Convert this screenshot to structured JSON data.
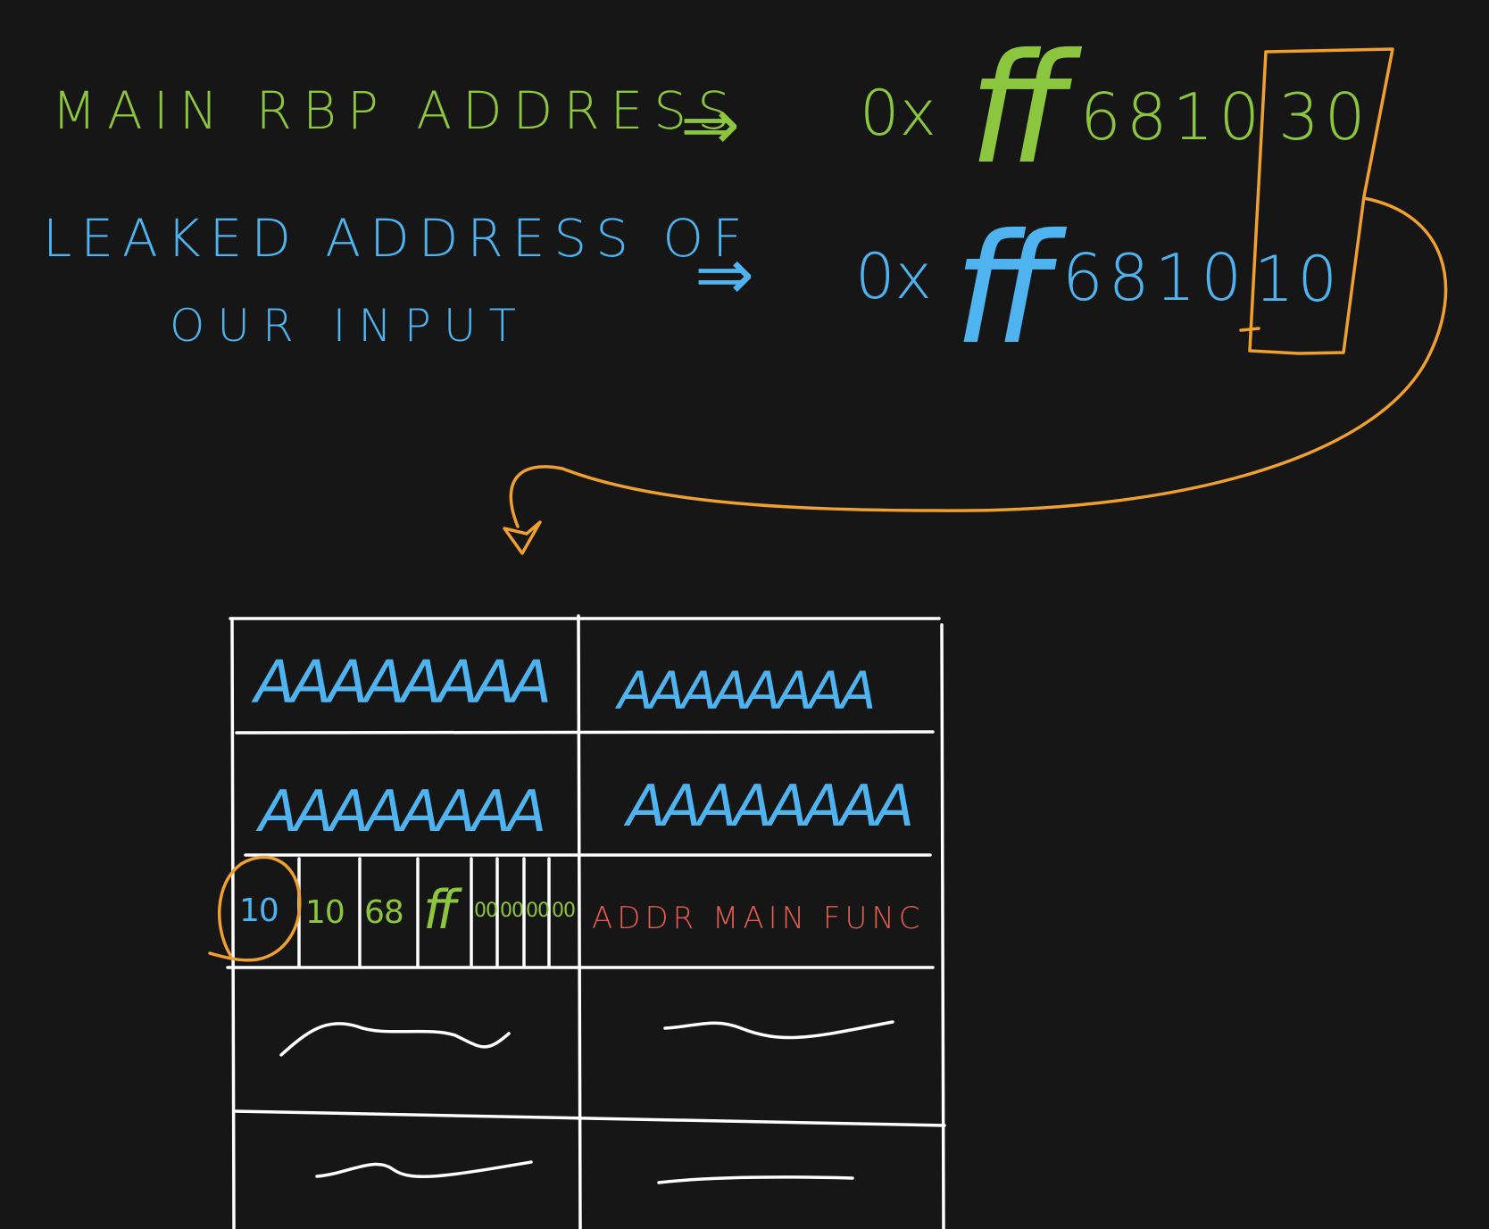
{
  "colors": {
    "background": "#161616",
    "rbp_green": "#8cc63f",
    "input_blue": "#4fb3ef",
    "highlight_orange": "#f0a030",
    "main_addr_red": "#e85d4f",
    "lines_white": "#ffffff"
  },
  "header": {
    "main_rbp_label": "MAIN RBP ADDRESS",
    "main_rbp_arrow": "⇒",
    "main_rbp_prefix": "0x",
    "main_rbp_ff": "ff",
    "main_rbp_middle": "6810",
    "main_rbp_last": "30",
    "leaked_label_line1": "LEAKED ADDRESS OF",
    "leaked_label_line2": "OUR INPUT",
    "leaked_arrow": "⇒",
    "leaked_prefix": "0x",
    "leaked_ff": "ff",
    "leaked_middle": "6810",
    "leaked_last": "10"
  },
  "stack": {
    "row1_left": "AAAAAAAA",
    "row1_right": "AAAAAAAA",
    "row2_left": "AAAAAAAA",
    "row2_right": "AAAAAAAA",
    "row3_bytes": [
      "10",
      "10",
      "68",
      "ff",
      "00",
      "00",
      "00",
      "00"
    ],
    "row3_label": "ADDR MAIN FUNC"
  }
}
